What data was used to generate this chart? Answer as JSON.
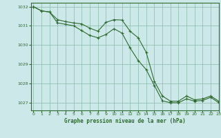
{
  "title": "Graphe pression niveau de la mer (hPa)",
  "bg_color": "#cce8e8",
  "line_color": "#2d6a2d",
  "marker_color": "#2d6a2d",
  "grid_color": "#88bbaa",
  "ylim": [
    1026.6,
    1032.2
  ],
  "xlim": [
    -0.3,
    23
  ],
  "yticks": [
    1027,
    1028,
    1029,
    1030,
    1031,
    1032
  ],
  "xticks": [
    0,
    1,
    2,
    3,
    4,
    5,
    6,
    7,
    8,
    9,
    10,
    11,
    12,
    13,
    14,
    15,
    16,
    17,
    18,
    19,
    20,
    21,
    22,
    23
  ],
  "series1_x": [
    0,
    1,
    2,
    3,
    4,
    5,
    6,
    7,
    8,
    9,
    10,
    11,
    12,
    13,
    14,
    15,
    16,
    17,
    18,
    19,
    20,
    21,
    22,
    23
  ],
  "series1_y": [
    1032.0,
    1031.78,
    1031.72,
    1031.32,
    1031.22,
    1031.15,
    1031.1,
    1030.88,
    1030.72,
    1031.18,
    1031.32,
    1031.3,
    1030.72,
    1030.38,
    1029.62,
    1028.12,
    1027.35,
    1027.08,
    1027.08,
    1027.35,
    1027.15,
    1027.2,
    1027.35,
    1027.08
  ],
  "series2_x": [
    0,
    1,
    2,
    3,
    4,
    5,
    6,
    7,
    8,
    9,
    10,
    11,
    12,
    13,
    14,
    15,
    16,
    17,
    18,
    19,
    20,
    21,
    22,
    23
  ],
  "series2_y": [
    1032.0,
    1031.78,
    1031.72,
    1031.15,
    1031.08,
    1031.0,
    1030.75,
    1030.5,
    1030.38,
    1030.55,
    1030.85,
    1030.62,
    1029.85,
    1029.2,
    1028.72,
    1027.9,
    1027.1,
    1027.0,
    1027.0,
    1027.2,
    1027.08,
    1027.12,
    1027.28,
    1027.0
  ]
}
